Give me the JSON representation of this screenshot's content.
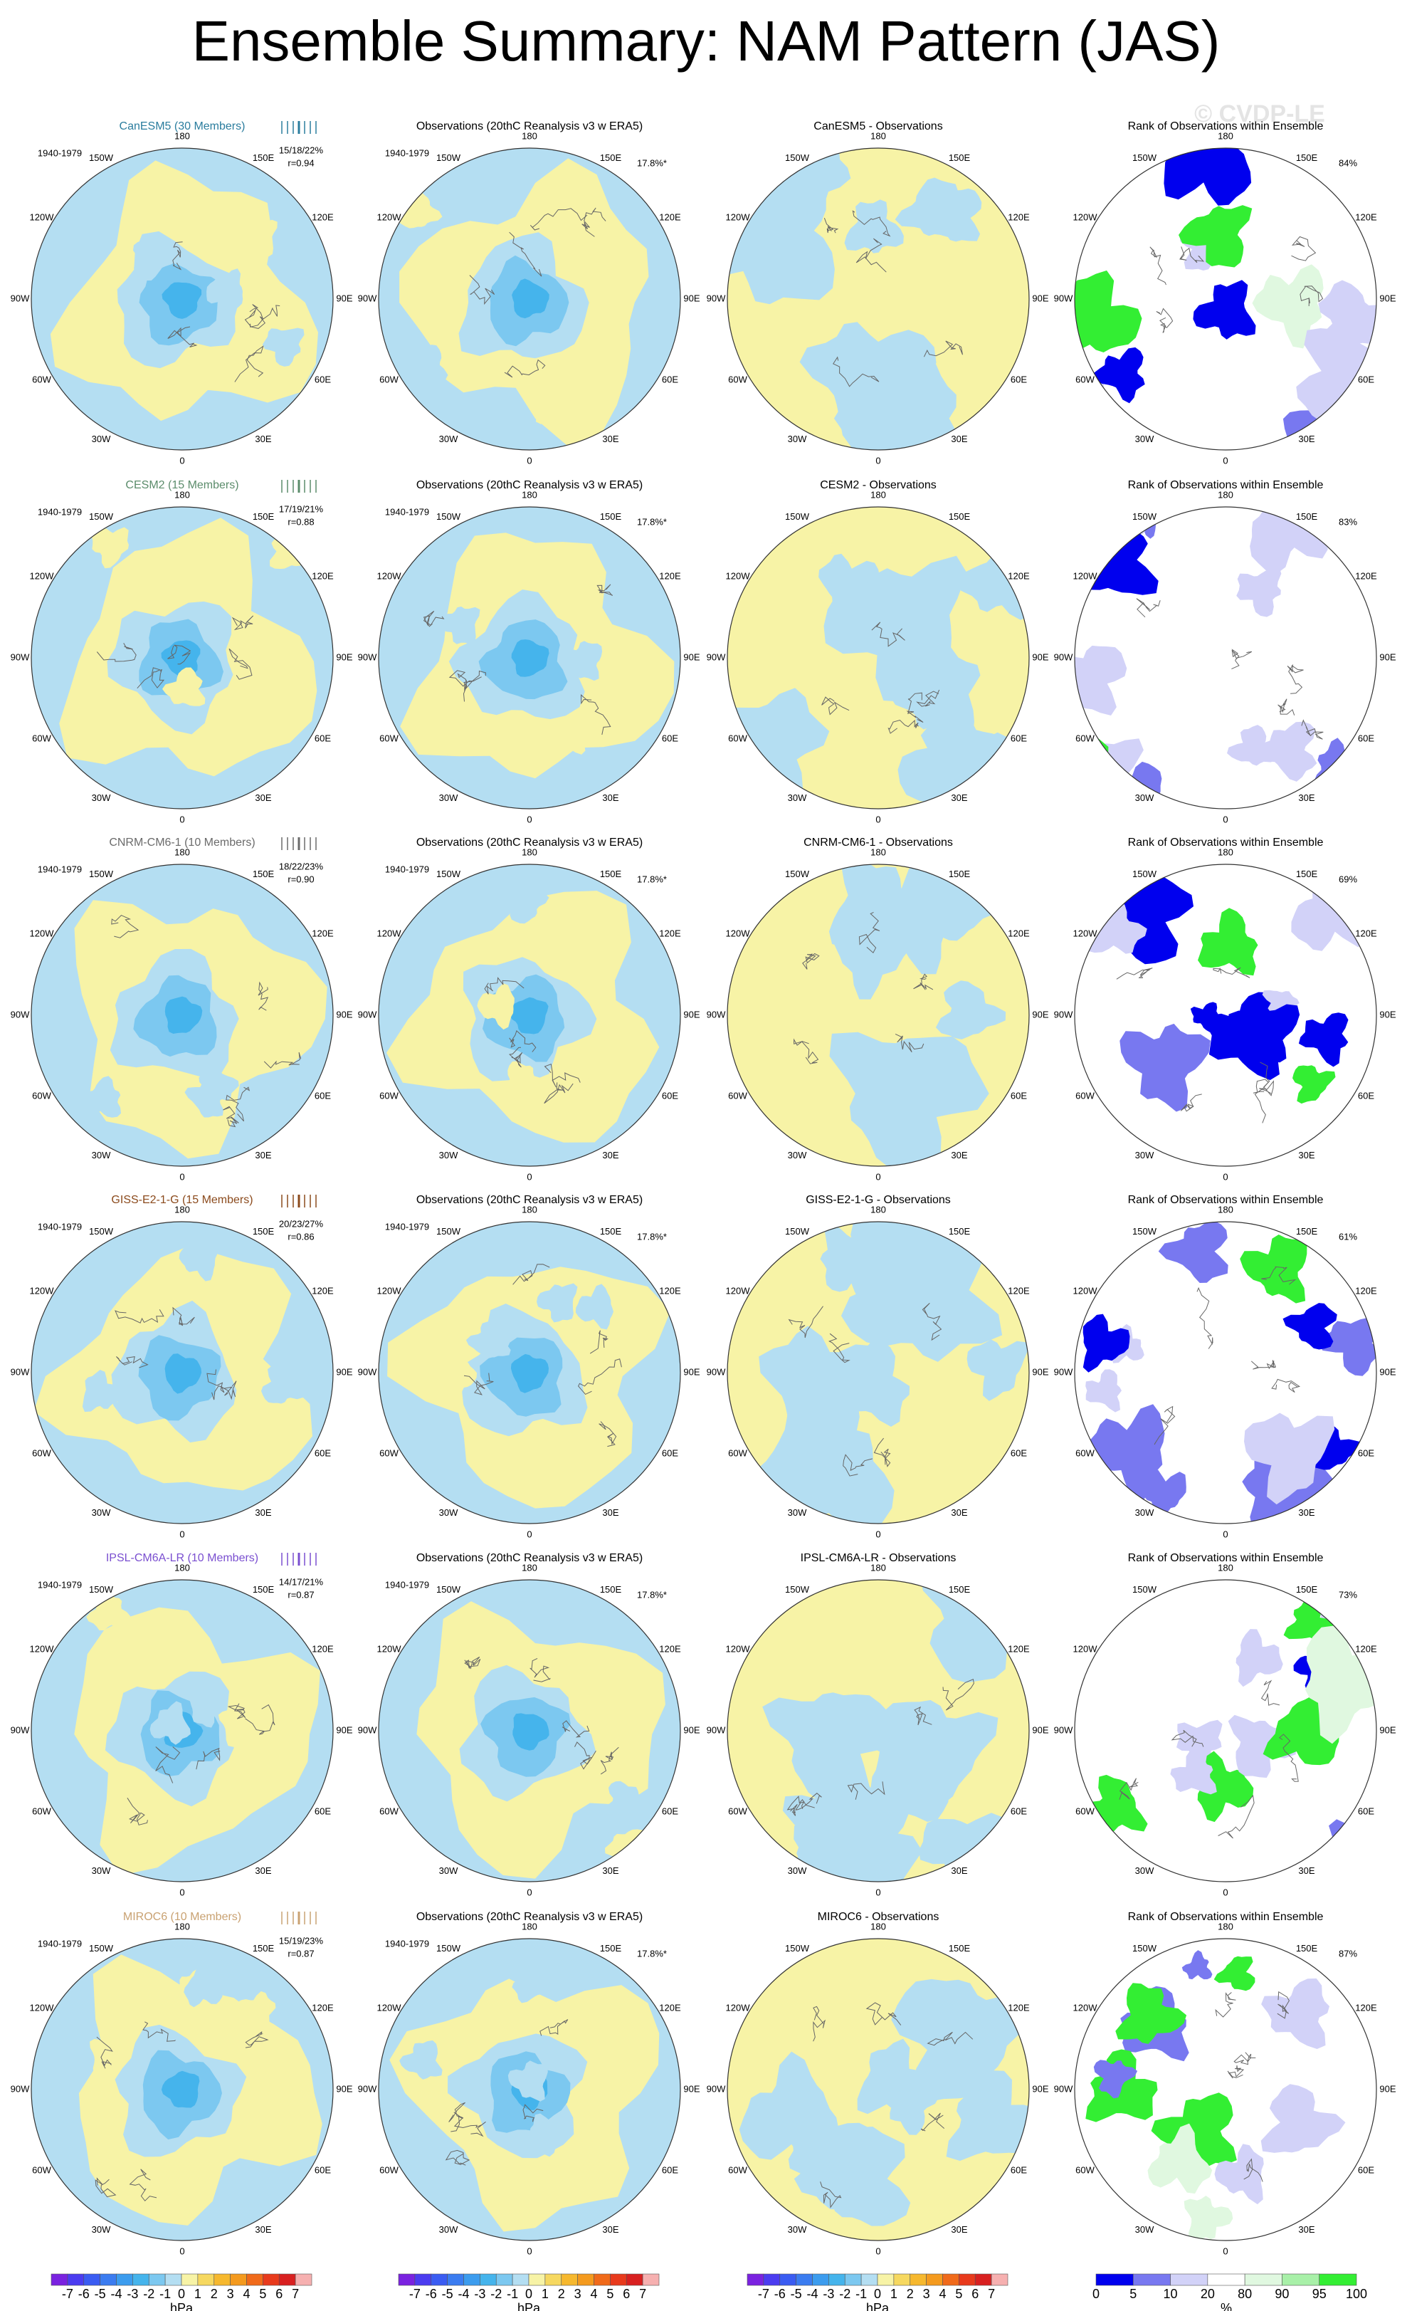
{
  "title": "Ensemble Summary: NAM Pattern (JAS)",
  "watermark": "© CVDP-LE",
  "map_labels": [
    "180",
    "150E",
    "120E",
    "90E",
    "60E",
    "30E",
    "0",
    "30W",
    "60W",
    "90W",
    "120W",
    "150W"
  ],
  "rows": [
    {
      "model": "CanESM5 (30 Members)",
      "model_color": "#2b7d9e",
      "period": "1940-1979",
      "stats": "15/18/22%",
      "r": "r=0.94",
      "obs_title": "Observations (20thC Reanalysis v3 w ERA5)",
      "obs_period": "1940-1979",
      "obs_pct": "17.8%*",
      "diff_title": "CanESM5 - Observations",
      "rank_title": "Rank of Observations within Ensemble",
      "rank_pct": "84%"
    },
    {
      "model": "CESM2 (15 Members)",
      "model_color": "#5b8c6b",
      "period": "1940-1979",
      "stats": "17/19/21%",
      "r": "r=0.88",
      "obs_title": "Observations (20thC Reanalysis v3 w ERA5)",
      "obs_period": "1940-1979",
      "obs_pct": "17.8%*",
      "diff_title": "CESM2 - Observations",
      "rank_title": "Rank of Observations within Ensemble",
      "rank_pct": "83%"
    },
    {
      "model": "CNRM-CM6-1 (10 Members)",
      "model_color": "#6b6b6b",
      "period": "1940-1979",
      "stats": "18/22/23%",
      "r": "r=0.90",
      "obs_title": "Observations (20thC Reanalysis v3 w ERA5)",
      "obs_period": "1940-1979",
      "obs_pct": "17.8%*",
      "diff_title": "CNRM-CM6-1 - Observations",
      "rank_title": "Rank of Observations within Ensemble",
      "rank_pct": "69%"
    },
    {
      "model": "GISS-E2-1-G (15 Members)",
      "model_color": "#8b4a1c",
      "period": "1940-1979",
      "stats": "20/23/27%",
      "r": "r=0.86",
      "obs_title": "Observations (20thC Reanalysis v3 w ERA5)",
      "obs_period": "1940-1979",
      "obs_pct": "17.8%*",
      "diff_title": "GISS-E2-1-G - Observations",
      "rank_title": "Rank of Observations within Ensemble",
      "rank_pct": "61%"
    },
    {
      "model": "IPSL-CM6A-LR (10 Members)",
      "model_color": "#7a4fd0",
      "period": "1940-1979",
      "stats": "14/17/21%",
      "r": "r=0.87",
      "obs_title": "Observations (20thC Reanalysis v3 w ERA5)",
      "obs_period": "1940-1979",
      "obs_pct": "17.8%*",
      "diff_title": "IPSL-CM6A-LR - Observations",
      "rank_title": "Rank of Observations within Ensemble",
      "rank_pct": "73%"
    },
    {
      "model": "MIROC6 (10 Members)",
      "model_color": "#c9a272",
      "period": "1940-1979",
      "stats": "15/19/23%",
      "r": "r=0.87",
      "obs_title": "Observations (20thC Reanalysis v3 w ERA5)",
      "obs_period": "1940-1979",
      "obs_pct": "17.8%*",
      "diff_title": "MIROC6 - Observations",
      "rank_title": "Rank of Observations within Ensemble",
      "rank_pct": "87%"
    }
  ],
  "colorbar_hpa": {
    "unit": "hPa",
    "labels": [
      -7,
      -6,
      -5,
      -4,
      -3,
      -2,
      -1,
      0,
      1,
      2,
      3,
      4,
      5,
      6,
      7
    ],
    "colors": [
      "#7a22e0",
      "#4b3cf0",
      "#3a5cf2",
      "#3b7cf0",
      "#3c9cee",
      "#45b4ec",
      "#7cc8f0",
      "#b4def2",
      "#f7f3a6",
      "#f6d860",
      "#f6b82e",
      "#f49a1e",
      "#f06a1a",
      "#e83a1c",
      "#d82020",
      "#f6b0b0"
    ]
  },
  "colorbar_rank": {
    "unit": "%",
    "labels": [
      0,
      5,
      10,
      20,
      80,
      90,
      95,
      100
    ],
    "colors": [
      "#0000ee",
      "#7878f0",
      "#d2d2f8",
      "#ffffff",
      "#e0f8e0",
      "#a8f0a8",
      "#33ee33"
    ]
  }
}
